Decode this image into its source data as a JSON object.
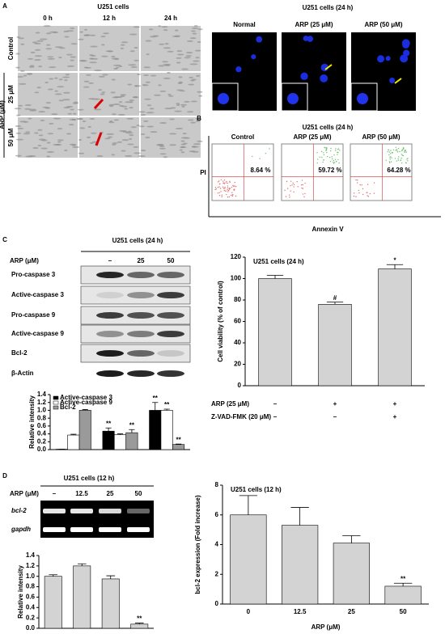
{
  "panels": {
    "A": {
      "label": "A",
      "left": {
        "title": "U251 cells",
        "columns": [
          "0 h",
          "12 h",
          "24 h"
        ],
        "rows": [
          "Control",
          "25 μM",
          "50 μM"
        ],
        "group": "ARP (μM)"
      },
      "right": {
        "title": "U251 cells (24 h)",
        "columns": [
          "Normal",
          "ARP (25 μM)",
          "ARP (50 μM)"
        ]
      }
    },
    "B": {
      "label": "B",
      "title": "U251 cells (24 h)",
      "columns": [
        "Control",
        "ARP (25 μM)",
        "ARP (50 μM)"
      ],
      "percentages": [
        "8.64 %",
        "59.72 %",
        "64.28 %"
      ],
      "y_label": "PI",
      "x_label": "Annexin V"
    },
    "C": {
      "label": "C",
      "blot": {
        "title": "U251 cells (24 h)",
        "dose_label": "ARP (μM)",
        "doses": [
          "–",
          "25",
          "50"
        ],
        "rows": [
          "Pro-caspase 3",
          "Active-caspase 3",
          "Pro-caspase 9",
          "Active-caspase 9",
          "Bcl-2",
          "β-Actin"
        ]
      }
    },
    "D": {
      "label": "D",
      "gel": {
        "title": "U251 cells (12 h)",
        "dose_label": "ARP (μM)",
        "doses": [
          "–",
          "12.5",
          "25",
          "50"
        ],
        "rows": [
          "bcl-2",
          "gapdh"
        ]
      }
    }
  },
  "chart_data": [
    {
      "type": "bar",
      "y_label": "Relative intensity",
      "categories": [
        null,
        null,
        null
      ],
      "series": [
        {
          "name": "Active-caspase 3",
          "color": "#000000",
          "values": [
            0.01,
            0.47,
            1.0
          ],
          "errors": [
            0.0,
            0.08,
            0.2
          ],
          "significance": [
            null,
            "**",
            "**"
          ]
        },
        {
          "name": "Active-caspase 9",
          "color": "#ffffff",
          "values": [
            0.37,
            0.38,
            1.0
          ],
          "errors": [
            0.02,
            0.02,
            0.03
          ],
          "significance": [
            null,
            null,
            "**"
          ]
        },
        {
          "name": "Bcl-2",
          "color": "#9a9a9a",
          "values": [
            1.0,
            0.43,
            0.13
          ],
          "errors": [
            0.02,
            0.08,
            0.01
          ],
          "significance": [
            null,
            "**",
            "**"
          ]
        }
      ],
      "ylim": [
        0,
        1.4
      ],
      "yticks": [
        {
          "value": 0,
          "label": "0.0"
        },
        0.2,
        0.4,
        0.6,
        0.8,
        {
          "value": 1,
          "label": "1.0"
        },
        1.2,
        1.4
      ]
    },
    {
      "type": "bar",
      "title": "U251 cells (24 h)",
      "y_label": "Cell viability (% of control)",
      "categories": [
        null,
        null,
        null
      ],
      "series": [
        {
          "color": "#d3d3d3",
          "values": [
            100,
            76,
            109
          ],
          "errors": [
            3,
            2,
            4
          ],
          "significance": [
            null,
            "#",
            "*"
          ]
        }
      ],
      "conditions": [
        {
          "name": "ARP (25 μM)",
          "values": [
            "–",
            "+",
            "+"
          ]
        },
        {
          "name": "Z-VAD-FMK (20 μM)",
          "values": [
            "–",
            "–",
            "+"
          ]
        }
      ],
      "ylim": [
        0,
        120
      ],
      "yticks": [
        0,
        20,
        40,
        60,
        80,
        100,
        120
      ]
    },
    {
      "type": "bar",
      "y_label": "Relative intensity",
      "categories": [
        null,
        null,
        null,
        null
      ],
      "series": [
        {
          "color": "#d3d3d3",
          "values": [
            1.0,
            1.2,
            0.95,
            0.08
          ],
          "errors": [
            0.03,
            0.04,
            0.06,
            0.02
          ],
          "significance": [
            null,
            null,
            null,
            "**"
          ]
        }
      ],
      "ylim": [
        0,
        1.4
      ],
      "yticks": [
        {
          "value": 0,
          "label": "0.0"
        },
        0.2,
        0.4,
        0.6,
        0.8,
        {
          "value": 1,
          "label": "1.0"
        },
        1.2,
        1.4
      ]
    },
    {
      "type": "bar",
      "title": "U251 cells (12 h)",
      "y_label": "bcl-2 expression (Fold increase)",
      "x_label": "ARP (μM)",
      "categories": [
        "0",
        "12.5",
        "25",
        "50"
      ],
      "series": [
        {
          "color": "#d3d3d3",
          "values": [
            6.0,
            5.3,
            4.1,
            1.2
          ],
          "errors": [
            1.3,
            1.2,
            0.5,
            0.2
          ],
          "significance": [
            null,
            null,
            null,
            "**"
          ]
        }
      ],
      "ylim": [
        0,
        8
      ],
      "yticks": [
        0,
        2,
        4,
        6,
        8
      ]
    }
  ]
}
